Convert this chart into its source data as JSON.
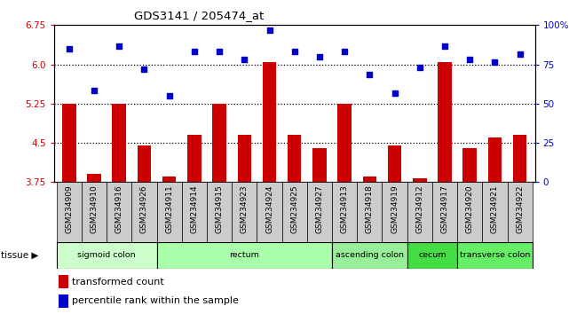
{
  "title": "GDS3141 / 205474_at",
  "samples": [
    "GSM234909",
    "GSM234910",
    "GSM234916",
    "GSM234926",
    "GSM234911",
    "GSM234914",
    "GSM234915",
    "GSM234923",
    "GSM234924",
    "GSM234925",
    "GSM234927",
    "GSM234913",
    "GSM234918",
    "GSM234919",
    "GSM234912",
    "GSM234917",
    "GSM234920",
    "GSM234921",
    "GSM234922"
  ],
  "bar_values": [
    5.25,
    3.9,
    5.25,
    4.45,
    3.85,
    4.65,
    5.25,
    4.65,
    6.05,
    4.65,
    4.4,
    5.25,
    3.85,
    4.45,
    3.82,
    6.05,
    4.4,
    4.6,
    4.65
  ],
  "dot_values": [
    6.3,
    5.5,
    6.35,
    5.9,
    5.4,
    6.25,
    6.25,
    6.1,
    6.65,
    6.25,
    6.15,
    6.25,
    5.8,
    5.45,
    5.95,
    6.35,
    6.1,
    6.05,
    6.2
  ],
  "bar_color": "#cc0000",
  "dot_color": "#0000cc",
  "ylim_left": [
    3.75,
    6.75
  ],
  "ylim_right": [
    0,
    100
  ],
  "yticks_left": [
    3.75,
    4.5,
    5.25,
    6.0,
    6.75
  ],
  "yticks_right": [
    0,
    25,
    50,
    75,
    100
  ],
  "ytick_labels_right": [
    "0",
    "25",
    "50",
    "75",
    "100%"
  ],
  "hlines": [
    4.5,
    5.25,
    6.0
  ],
  "tissue_groups": [
    {
      "label": "sigmoid colon",
      "start": 0,
      "end": 4,
      "color": "#ccffcc"
    },
    {
      "label": "rectum",
      "start": 4,
      "end": 11,
      "color": "#aaffaa"
    },
    {
      "label": "ascending colon",
      "start": 11,
      "end": 14,
      "color": "#99ee99"
    },
    {
      "label": "cecum",
      "start": 14,
      "end": 16,
      "color": "#44dd44"
    },
    {
      "label": "transverse colon",
      "start": 16,
      "end": 19,
      "color": "#66ee66"
    }
  ],
  "legend_red_label": "transformed count",
  "legend_blue_label": "percentile rank within the sample",
  "tissue_label": "tissue",
  "xtick_bg_color": "#cccccc",
  "plot_bg_color": "#ffffff",
  "fig_bg_color": "#ffffff"
}
